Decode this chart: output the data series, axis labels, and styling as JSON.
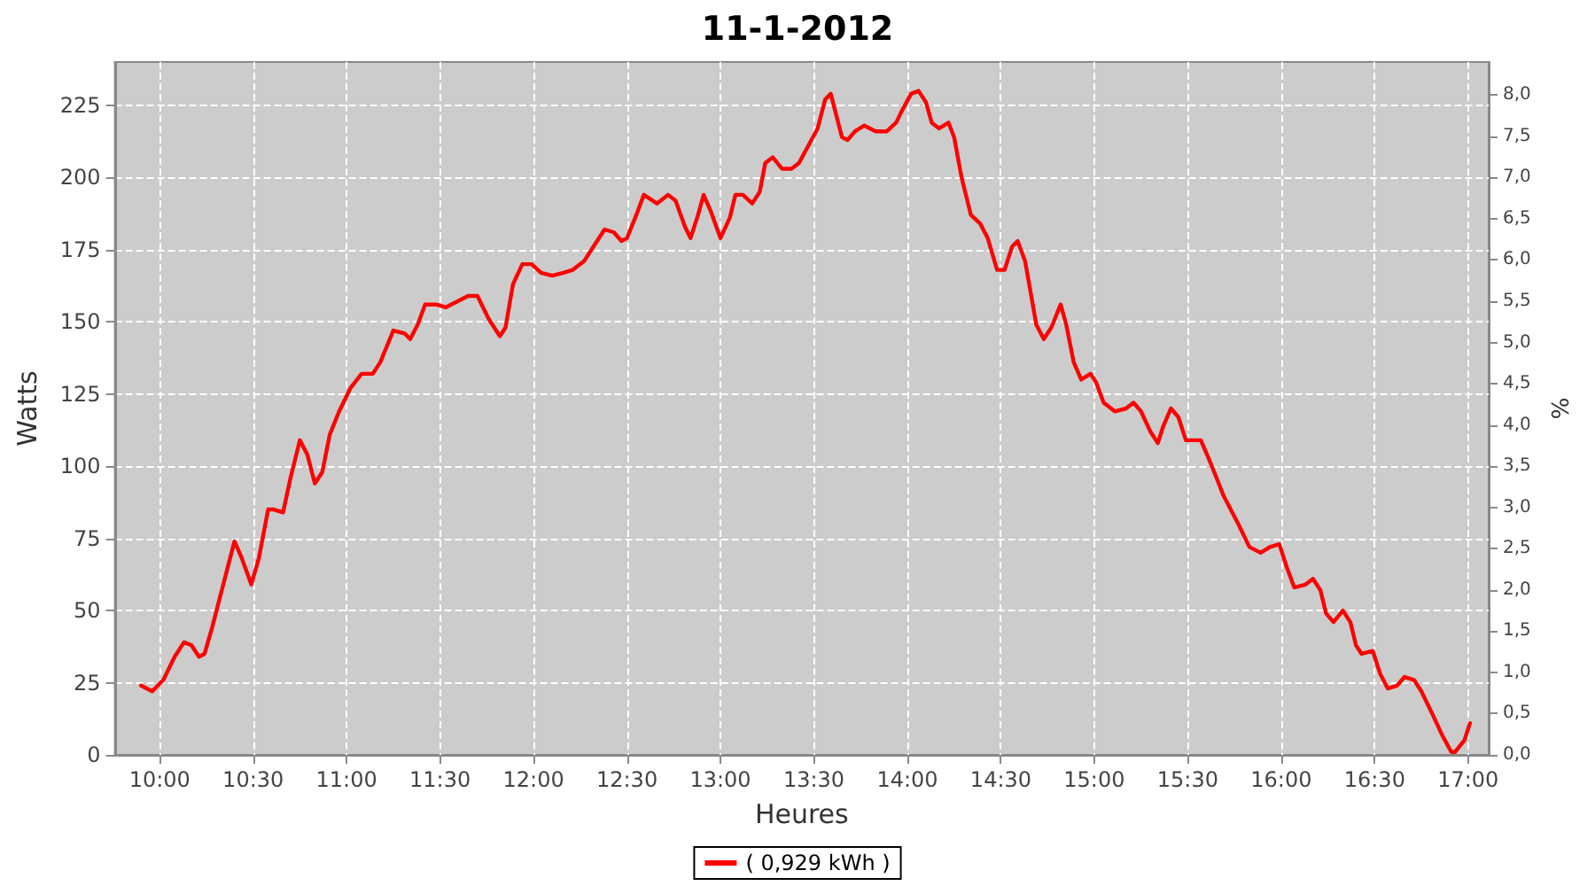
{
  "chart_data": {
    "type": "line",
    "title": "11-1-2012",
    "xlabel": "Heures",
    "ylabel": "Watts",
    "y2label": "%",
    "xlim": [
      9.76,
      17.11
    ],
    "xticks": [
      {
        "value": 10,
        "label": "10:00"
      },
      {
        "value": 10.5,
        "label": "10:30"
      },
      {
        "value": 11,
        "label": "11:00"
      },
      {
        "value": 11.5,
        "label": "11:30"
      },
      {
        "value": 12,
        "label": "12:00"
      },
      {
        "value": 12.5,
        "label": "12:30"
      },
      {
        "value": 13,
        "label": "13:00"
      },
      {
        "value": 13.5,
        "label": "13:30"
      },
      {
        "value": 14,
        "label": "14:00"
      },
      {
        "value": 14.5,
        "label": "14:30"
      },
      {
        "value": 15,
        "label": "15:00"
      },
      {
        "value": 15.5,
        "label": "15:30"
      },
      {
        "value": 16,
        "label": "16:00"
      },
      {
        "value": 16.5,
        "label": "16:30"
      },
      {
        "value": 17,
        "label": "17:00"
      }
    ],
    "ylim": [
      0,
      240
    ],
    "yticks": [
      0,
      25,
      50,
      75,
      100,
      125,
      150,
      175,
      200,
      225
    ],
    "y2lim": [
      0,
      8.4
    ],
    "y2ticks": [
      {
        "value": 0,
        "label": "0,0"
      },
      {
        "value": 0.5,
        "label": "0,5"
      },
      {
        "value": 1,
        "label": "1,0"
      },
      {
        "value": 1.5,
        "label": "1,5"
      },
      {
        "value": 2,
        "label": "2,0"
      },
      {
        "value": 2.5,
        "label": "2,5"
      },
      {
        "value": 3,
        "label": "3,0"
      },
      {
        "value": 3.5,
        "label": "3,5"
      },
      {
        "value": 4,
        "label": "4,0"
      },
      {
        "value": 4.5,
        "label": "4,5"
      },
      {
        "value": 5,
        "label": "5,0"
      },
      {
        "value": 5.5,
        "label": "5,5"
      },
      {
        "value": 6,
        "label": "6,0"
      },
      {
        "value": 6.5,
        "label": "6,5"
      },
      {
        "value": 7,
        "label": "7,0"
      },
      {
        "value": 7.5,
        "label": "7,5"
      },
      {
        "value": 8,
        "label": "8,0"
      }
    ],
    "grid": true,
    "legend": "bottom",
    "marker": "none",
    "line_style": "solid",
    "series": [
      {
        "name": "( 0,929 kWh )",
        "color": "#ff0000",
        "x": [
          9.9,
          9.96,
          10.02,
          10.08,
          10.13,
          10.17,
          10.21,
          10.24,
          10.28,
          10.34,
          10.4,
          10.44,
          10.49,
          10.53,
          10.58,
          10.61,
          10.66,
          10.7,
          10.75,
          10.79,
          10.83,
          10.87,
          10.91,
          10.96,
          11.02,
          11.08,
          11.14,
          11.18,
          11.25,
          11.31,
          11.34,
          11.38,
          11.42,
          11.48,
          11.53,
          11.59,
          11.65,
          11.7,
          11.76,
          11.82,
          11.85,
          11.89,
          11.94,
          11.99,
          12.04,
          12.1,
          12.16,
          12.21,
          12.27,
          12.33,
          12.38,
          12.43,
          12.47,
          12.5,
          12.55,
          12.59,
          12.66,
          12.72,
          12.76,
          12.81,
          12.84,
          12.88,
          12.91,
          12.95,
          13.0,
          13.05,
          13.08,
          13.12,
          13.17,
          13.21,
          13.24,
          13.28,
          13.33,
          13.38,
          13.42,
          13.47,
          13.52,
          13.56,
          13.59,
          13.61,
          13.65,
          13.68,
          13.72,
          13.77,
          13.83,
          13.89,
          13.94,
          13.97,
          14.02,
          14.06,
          14.1,
          14.13,
          14.17,
          14.22,
          14.25,
          14.29,
          14.34,
          14.39,
          14.43,
          14.48,
          14.52,
          14.56,
          14.59,
          14.63,
          14.66,
          14.69,
          14.73,
          14.77,
          14.82,
          14.85,
          14.89,
          14.93,
          14.98,
          15.01,
          15.05,
          15.11,
          15.17,
          15.21,
          15.25,
          15.3,
          15.34,
          15.37,
          15.41,
          15.45,
          15.49,
          15.53,
          15.57,
          15.61,
          15.66,
          15.69,
          15.73,
          15.77,
          15.83,
          15.89,
          15.94,
          15.99,
          16.03,
          16.07,
          16.13,
          16.17,
          16.21,
          16.24,
          16.28,
          16.33,
          16.37,
          16.4,
          16.43,
          16.49,
          16.53,
          16.57,
          16.62,
          16.66,
          16.71,
          16.75,
          16.81,
          16.86,
          16.91,
          16.93,
          16.98,
          17.01
        ],
        "values": [
          24,
          22,
          26,
          34,
          39,
          38,
          34,
          35,
          44,
          59,
          74,
          68,
          59,
          68,
          85,
          85,
          84,
          96,
          109,
          104,
          94,
          98,
          111,
          119,
          127,
          132,
          132,
          136,
          147,
          146,
          144,
          149,
          156,
          156,
          155,
          157,
          159,
          159,
          151,
          145,
          148,
          163,
          170,
          170,
          167,
          166,
          167,
          168,
          171,
          177,
          182,
          181,
          178,
          179,
          187,
          194,
          191,
          194,
          192,
          183,
          179,
          187,
          194,
          188,
          179,
          186,
          194,
          194,
          191,
          195,
          205,
          207,
          203,
          203,
          205,
          211,
          217,
          227,
          229,
          224,
          214,
          213,
          216,
          218,
          216,
          216,
          219,
          223,
          229,
          230,
          226,
          219,
          217,
          219,
          214,
          200,
          187,
          184,
          179,
          168,
          168,
          176,
          178,
          171,
          160,
          149,
          144,
          148,
          156,
          149,
          136,
          130,
          132,
          129,
          122,
          119,
          120,
          122,
          119,
          112,
          108,
          114,
          120,
          117,
          109,
          109,
          109,
          103,
          95,
          90,
          85,
          80,
          72,
          70,
          72,
          73,
          65,
          58,
          59,
          61,
          57,
          49,
          46,
          50,
          46,
          38,
          35,
          36,
          28,
          23,
          24,
          27,
          26,
          22,
          14,
          7,
          1,
          1,
          5,
          11
        ]
      }
    ]
  }
}
